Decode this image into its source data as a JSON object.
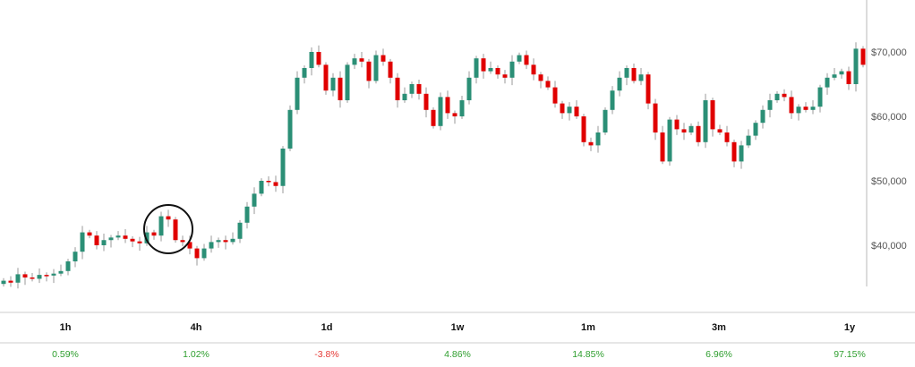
{
  "chart_data": {
    "type": "candlestick",
    "title": "",
    "ylabel": "",
    "ylim": [
      33000,
      75000
    ],
    "yticks": [
      {
        "value": 70000,
        "label": "$70,000"
      },
      {
        "value": 60000,
        "label": "$60,000"
      },
      {
        "value": 50000,
        "label": "$50,000"
      },
      {
        "value": 40000,
        "label": "$40,000"
      }
    ],
    "first_open": 34000,
    "closes": [
      34500,
      34200,
      35500,
      35000,
      34800,
      35400,
      35300,
      35600,
      36000,
      37500,
      39000,
      42000,
      41500,
      40000,
      40800,
      41200,
      41500,
      41000,
      40600,
      40300,
      42000,
      41500,
      44500,
      44000,
      40800,
      40500,
      39500,
      38000,
      39500,
      40500,
      40800,
      40500,
      41000,
      43500,
      46000,
      48000,
      50000,
      49800,
      49200,
      55000,
      61000,
      66000,
      67500,
      70000,
      68000,
      64000,
      66000,
      62500,
      68000,
      69000,
      68500,
      65500,
      69500,
      68500,
      66000,
      62500,
      63500,
      65000,
      63500,
      61000,
      58500,
      63000,
      60500,
      60000,
      62500,
      66000,
      69000,
      67000,
      67500,
      66500,
      66000,
      68500,
      69500,
      68000,
      66500,
      65500,
      64500,
      62000,
      60500,
      61500,
      60000,
      56000,
      55500,
      57500,
      61000,
      64000,
      66000,
      67500,
      65500,
      66500,
      62000,
      57500,
      53000,
      59500,
      58000,
      57500,
      58500,
      56000,
      62500,
      58000,
      57500,
      56000,
      53000,
      55500,
      57000,
      59000,
      61000,
      62500,
      63500,
      63000,
      60500,
      61500,
      61000,
      61500,
      64500,
      66000,
      66500,
      67000,
      65000,
      70500,
      68000
    ],
    "annotation": {
      "shape": "circle",
      "candle_index": 23,
      "price": 42500
    },
    "colors": {
      "up": "#2b8f76",
      "down": "#e00000",
      "wick": "#9a9a9a",
      "axis": "#d0d0d0",
      "annotation": "#111111"
    }
  },
  "performance": [
    {
      "label": "1h",
      "value": "0.59%",
      "sign": "pos"
    },
    {
      "label": "4h",
      "value": "1.02%",
      "sign": "pos"
    },
    {
      "label": "1d",
      "value": "-3.8%",
      "sign": "neg"
    },
    {
      "label": "1w",
      "value": "4.86%",
      "sign": "pos"
    },
    {
      "label": "1m",
      "value": "14.85%",
      "sign": "pos"
    },
    {
      "label": "3m",
      "value": "6.96%",
      "sign": "pos"
    },
    {
      "label": "1y",
      "value": "97.15%",
      "sign": "pos"
    }
  ]
}
